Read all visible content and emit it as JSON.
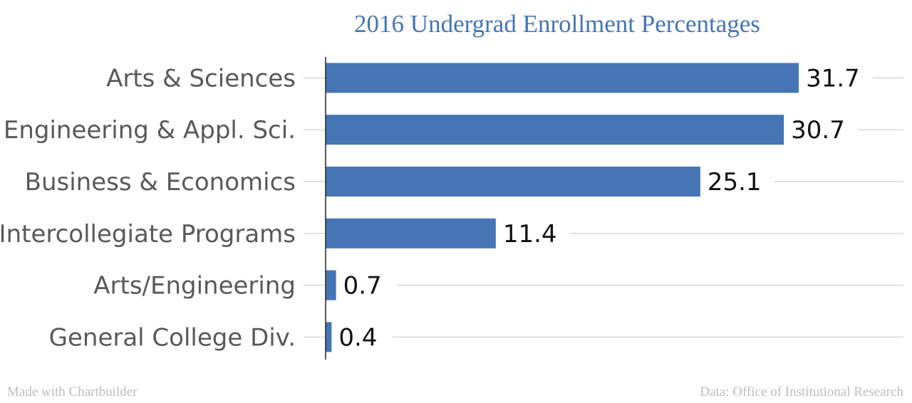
{
  "chart_data": {
    "type": "bar",
    "orientation": "horizontal",
    "title": "2016 Undergrad Enrollment Percentages",
    "categories": [
      "Arts & Sciences",
      "Engineering & Appl. Sci.",
      "Business & Economics",
      "Intercollegiate Programs",
      "Arts/Engineering",
      "General College Div."
    ],
    "values": [
      31.7,
      30.7,
      25.1,
      11.4,
      0.7,
      0.4
    ],
    "value_labels": [
      "31.7",
      "30.7",
      "25.1",
      "11.4",
      "0.7",
      "0.4"
    ],
    "xlim": [
      0,
      35
    ],
    "grid": true,
    "bar_color": "#4575b4"
  },
  "footer": {
    "credit": "Made with Chartbuilder",
    "source": "Data: Office of Institutional Research"
  }
}
